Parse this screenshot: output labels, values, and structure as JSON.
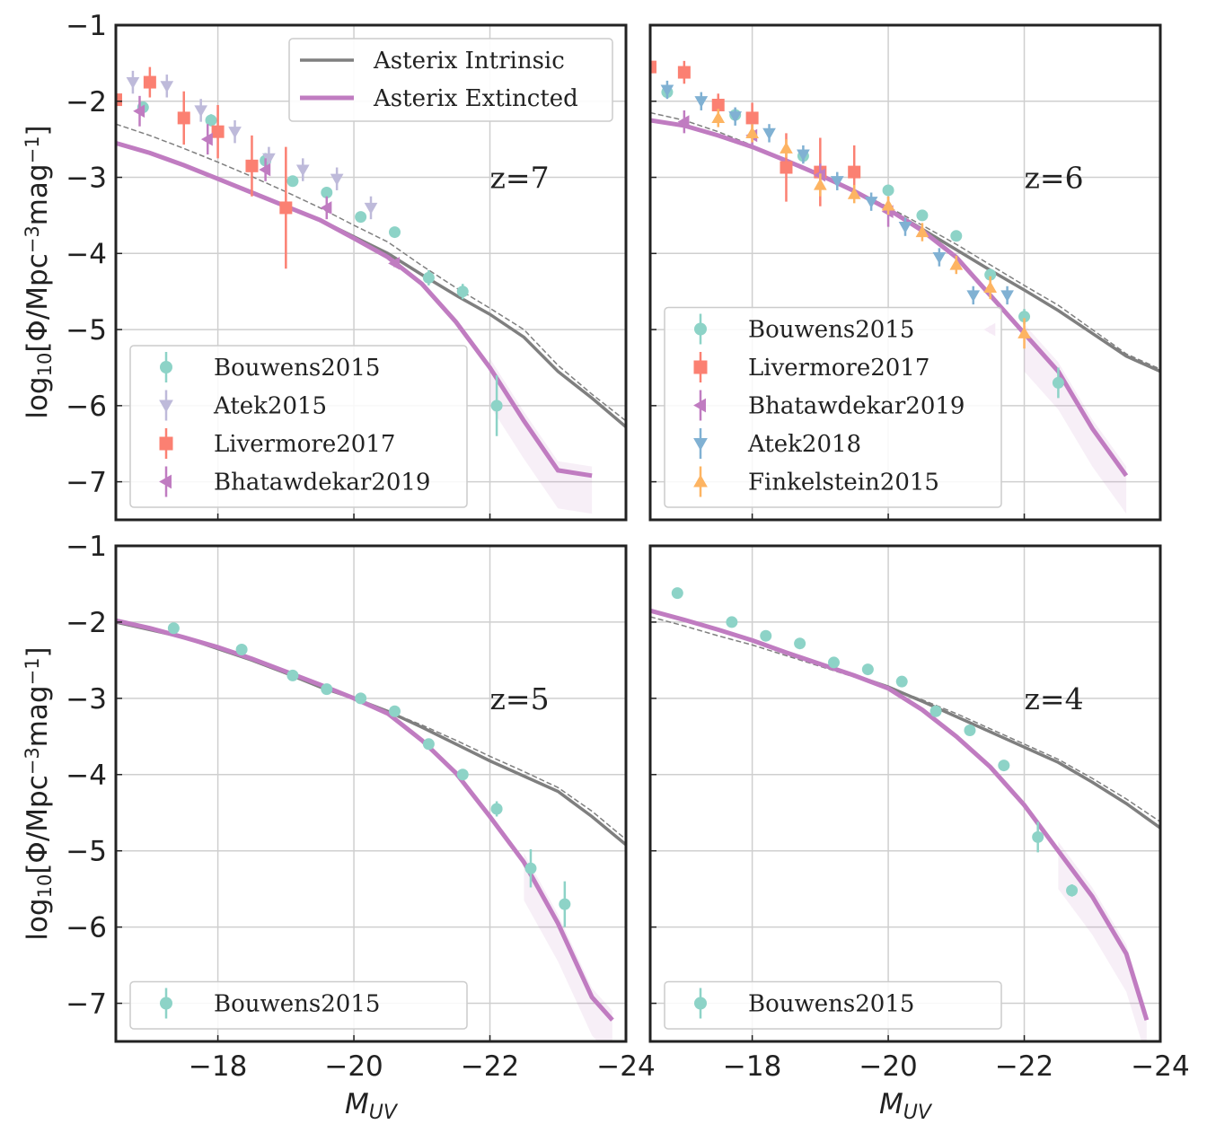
{
  "figure": {
    "ylabel_parts": [
      "log",
      "10",
      "[Φ/Mpc",
      "−3",
      "mag",
      "−1",
      "]"
    ],
    "xlabel_parts": [
      "M",
      "UV"
    ]
  },
  "colors": {
    "intrinsic": "#7f7f7f",
    "extincted": "#c07cc1",
    "Bouwens2015": "#8dd3c7",
    "Atek2015": "#bebada",
    "Livermore2017": "#fb8072",
    "Bhatawdekar2019": "#c07cc1",
    "Atek2018": "#80b1d3",
    "Finkelstein2015": "#fdb462",
    "grid": "#cfcfcf",
    "spine": "#222222"
  },
  "chart_data": [
    {
      "type": "line",
      "panel": "z7",
      "annotation": "z=7",
      "xlim": [
        -16.5,
        -24
      ],
      "ylim": [
        -7.5,
        -1
      ],
      "xticks": [
        -18,
        -20,
        -22,
        -24
      ],
      "yticks": [
        -1,
        -2,
        -3,
        -4,
        -5,
        -6,
        -7
      ],
      "xtick_labels": [
        "−18",
        "−20",
        "−22",
        "−24"
      ],
      "ytick_labels": [
        "−1",
        "−2",
        "−3",
        "−4",
        "−5",
        "−6",
        "−7"
      ],
      "grid": true,
      "line_legend": [
        "Asterix Intrinsic",
        "Asterix Extincted"
      ],
      "lines": {
        "intrinsic": {
          "x": [
            -16.5,
            -17.0,
            -17.5,
            -18.0,
            -18.5,
            -19.0,
            -19.5,
            -20.0,
            -20.5,
            -21.0,
            -21.5,
            -22.0,
            -22.5,
            -23.0,
            -23.5,
            -24.0
          ],
          "y": [
            -2.55,
            -2.68,
            -2.84,
            -3.02,
            -3.2,
            -3.38,
            -3.56,
            -3.78,
            -4.0,
            -4.28,
            -4.55,
            -4.8,
            -5.1,
            -5.55,
            -5.9,
            -6.28
          ]
        },
        "intrinsic_dashed": {
          "x": [
            -16.5,
            -17.0,
            -17.5,
            -18.0,
            -18.5,
            -19.0,
            -19.5,
            -20.0,
            -20.5,
            -21.0,
            -21.5,
            -22.0,
            -22.5,
            -23.0,
            -23.5,
            -24.0
          ],
          "y": [
            -2.3,
            -2.45,
            -2.62,
            -2.8,
            -2.99,
            -3.19,
            -3.4,
            -3.63,
            -3.85,
            -4.16,
            -4.45,
            -4.72,
            -5.0,
            -5.47,
            -5.85,
            -6.2
          ]
        },
        "extincted": {
          "x": [
            -16.5,
            -17.0,
            -17.5,
            -18.0,
            -18.5,
            -19.0,
            -19.5,
            -20.0,
            -20.5,
            -21.0,
            -21.5,
            -22.0,
            -22.5,
            -23.0,
            -23.5
          ],
          "y": [
            -2.55,
            -2.68,
            -2.84,
            -3.02,
            -3.2,
            -3.38,
            -3.56,
            -3.8,
            -4.05,
            -4.4,
            -4.9,
            -5.5,
            -6.2,
            -6.85,
            -6.92
          ]
        }
      },
      "series": [
        {
          "name": "Bouwens2015",
          "marker": "circle",
          "x": [
            -16.9,
            -17.9,
            -18.7,
            -19.1,
            -19.6,
            -20.1,
            -20.6,
            -21.1,
            -21.6,
            -22.1
          ],
          "y": [
            -2.08,
            -2.25,
            -2.78,
            -3.05,
            -3.2,
            -3.52,
            -3.72,
            -4.32,
            -4.5,
            -6.0
          ],
          "err": [
            0.07,
            0.08,
            0.1,
            0.07,
            0.07,
            0.07,
            0.07,
            0.1,
            0.1,
            0.4
          ]
        },
        {
          "name": "Atek2015",
          "marker": "triangle-down",
          "x": [
            -16.75,
            -17.25,
            -17.75,
            -18.25,
            -18.75,
            -19.25,
            -19.75,
            -20.25
          ],
          "y": [
            -1.75,
            -1.8,
            -2.12,
            -2.4,
            -2.75,
            -2.9,
            -3.02,
            -3.4
          ],
          "err": [
            0.15,
            0.15,
            0.15,
            0.15,
            0.15,
            0.15,
            0.15,
            0.15
          ]
        },
        {
          "name": "Livermore2017",
          "marker": "square",
          "x": [
            -16.5,
            -17.0,
            -17.5,
            -18.0,
            -18.5,
            -19.0
          ],
          "y": [
            -1.98,
            -1.75,
            -2.22,
            -2.4,
            -2.85,
            -3.4
          ],
          "err": [
            0.2,
            0.2,
            0.35,
            0.35,
            0.4,
            0.8
          ]
        },
        {
          "name": "Bhatawdekar2019",
          "marker": "triangle-left",
          "x": [
            -16.85,
            -17.85,
            -18.7,
            -19.6,
            -20.6
          ],
          "y": [
            -2.13,
            -2.5,
            -2.9,
            -3.4,
            -4.13
          ],
          "err": [
            0.2,
            0.2,
            0.15,
            0.15,
            0.05
          ]
        }
      ]
    },
    {
      "type": "line",
      "panel": "z6",
      "annotation": "z=6",
      "xlim": [
        -16.5,
        -24
      ],
      "ylim": [
        -7.5,
        -1
      ],
      "xticks": [
        -18,
        -20,
        -22,
        -24
      ],
      "xtick_labels": [
        "−18",
        "−20",
        "−22",
        "−24"
      ],
      "grid": true,
      "lines": {
        "intrinsic": {
          "x": [
            -16.5,
            -17.0,
            -17.5,
            -18.0,
            -18.5,
            -19.0,
            -19.5,
            -20.0,
            -20.5,
            -21.0,
            -21.5,
            -22.0,
            -22.5,
            -23.0,
            -23.5,
            -24.0
          ],
          "y": [
            -2.25,
            -2.32,
            -2.45,
            -2.6,
            -2.78,
            -2.97,
            -3.18,
            -3.42,
            -3.68,
            -3.95,
            -4.22,
            -4.48,
            -4.75,
            -5.05,
            -5.35,
            -5.55
          ]
        },
        "intrinsic_dashed": {
          "x": [
            -16.5,
            -17.0,
            -17.5,
            -18.0,
            -18.5,
            -19.0,
            -19.5,
            -20.0,
            -20.5,
            -21.0,
            -21.5,
            -22.0,
            -22.5,
            -23.0,
            -23.5,
            -24.0
          ],
          "y": [
            -2.15,
            -2.25,
            -2.4,
            -2.58,
            -2.78,
            -2.97,
            -3.17,
            -3.39,
            -3.63,
            -3.88,
            -4.15,
            -4.42,
            -4.68,
            -5.0,
            -5.32,
            -5.52
          ]
        },
        "extincted": {
          "x": [
            -16.5,
            -17.0,
            -17.5,
            -18.0,
            -18.5,
            -19.0,
            -19.5,
            -20.0,
            -20.5,
            -21.0,
            -21.5,
            -22.0,
            -22.5,
            -23.0,
            -23.5
          ],
          "y": [
            -2.25,
            -2.32,
            -2.45,
            -2.6,
            -2.78,
            -2.97,
            -3.18,
            -3.42,
            -3.7,
            -4.05,
            -4.55,
            -5.05,
            -5.55,
            -6.3,
            -6.92
          ]
        }
      },
      "series": [
        {
          "name": "Bouwens2015",
          "marker": "circle",
          "x": [
            -16.75,
            -17.75,
            -18.75,
            -20.0,
            -20.5,
            -21.0,
            -21.5,
            -22.0,
            -22.5
          ],
          "y": [
            -1.88,
            -2.18,
            -2.72,
            -3.17,
            -3.5,
            -3.77,
            -4.28,
            -4.83,
            -5.7
          ],
          "err": [
            0.08,
            0.07,
            0.07,
            0.07,
            0.07,
            0.07,
            0.08,
            0.1,
            0.2
          ]
        },
        {
          "name": "Livermore2017",
          "marker": "square",
          "x": [
            -16.5,
            -17.0,
            -17.5,
            -18.0,
            -18.5,
            -19.0,
            -19.5
          ],
          "y": [
            -1.55,
            -1.62,
            -2.05,
            -2.22,
            -2.87,
            -2.93,
            -2.93
          ],
          "err": [
            0.15,
            0.15,
            0.15,
            0.2,
            0.45,
            0.45,
            0.35
          ]
        },
        {
          "name": "Bhatawdekar2019",
          "marker": "triangle-left",
          "x": [
            -17.0,
            -18.0,
            -19.0,
            -20.0,
            -21.5
          ],
          "y": [
            -2.27,
            -2.45,
            -2.97,
            -3.45,
            -5.0
          ],
          "err": [
            0.15,
            0.15,
            0.15,
            0.2,
            0.05
          ]
        },
        {
          "name": "Atek2018",
          "marker": "triangle-down",
          "x": [
            -16.75,
            -17.25,
            -17.75,
            -18.25,
            -18.75,
            -19.25,
            -19.75,
            -20.25,
            -20.75,
            -21.25,
            -21.75
          ],
          "y": [
            -1.85,
            -2.0,
            -2.2,
            -2.42,
            -2.7,
            -3.05,
            -3.32,
            -3.65,
            -4.05,
            -4.55,
            -4.55
          ],
          "err": [
            0.12,
            0.12,
            0.12,
            0.12,
            0.12,
            0.12,
            0.12,
            0.12,
            0.12,
            0.12,
            0.12
          ]
        },
        {
          "name": "Finkelstein2015",
          "marker": "triangle-up",
          "x": [
            -17.5,
            -18.0,
            -18.5,
            -19.0,
            -19.5,
            -20.0,
            -20.5,
            -21.0,
            -21.5,
            -22.0
          ],
          "y": [
            -2.22,
            -2.42,
            -2.62,
            -3.1,
            -3.22,
            -3.37,
            -3.72,
            -4.15,
            -4.45,
            -5.05
          ],
          "err": [
            0.12,
            0.12,
            0.12,
            0.15,
            0.12,
            0.12,
            0.12,
            0.12,
            0.15,
            0.2
          ]
        }
      ]
    },
    {
      "type": "line",
      "panel": "z5",
      "annotation": "z=5",
      "xlim": [
        -16.5,
        -24
      ],
      "ylim": [
        -7.5,
        -1
      ],
      "xticks": [
        -18,
        -20,
        -22,
        -24
      ],
      "yticks": [
        -1,
        -2,
        -3,
        -4,
        -5,
        -6,
        -7
      ],
      "xtick_labels": [
        "−18",
        "−20",
        "−22",
        "−24"
      ],
      "ytick_labels": [
        "−1",
        "−2",
        "−3",
        "−4",
        "−5",
        "−6",
        "−7"
      ],
      "grid": true,
      "lines": {
        "intrinsic": {
          "x": [
            -16.5,
            -17.0,
            -17.5,
            -18.0,
            -18.5,
            -19.0,
            -19.5,
            -20.0,
            -20.5,
            -21.0,
            -21.5,
            -22.0,
            -22.5,
            -23.0,
            -23.5,
            -24.0
          ],
          "y": [
            -2.0,
            -2.1,
            -2.2,
            -2.35,
            -2.5,
            -2.67,
            -2.85,
            -3.0,
            -3.17,
            -3.38,
            -3.6,
            -3.82,
            -4.02,
            -4.22,
            -4.55,
            -4.92
          ]
        },
        "intrinsic_dashed": {
          "x": [
            -16.5,
            -17.0,
            -17.5,
            -18.0,
            -18.5,
            -19.0,
            -19.5,
            -20.0,
            -20.5,
            -21.0,
            -21.5,
            -22.0,
            -22.5,
            -23.0,
            -23.5,
            -24.0
          ],
          "y": [
            -2.0,
            -2.1,
            -2.2,
            -2.35,
            -2.5,
            -2.67,
            -2.85,
            -3.0,
            -3.17,
            -3.35,
            -3.55,
            -3.76,
            -3.96,
            -4.17,
            -4.48,
            -4.85
          ]
        },
        "extincted": {
          "x": [
            -16.5,
            -17.0,
            -17.5,
            -18.0,
            -18.5,
            -19.0,
            -19.5,
            -20.0,
            -20.5,
            -21.0,
            -21.5,
            -22.0,
            -22.5,
            -23.0,
            -23.5,
            -23.8
          ],
          "y": [
            -1.98,
            -2.08,
            -2.2,
            -2.33,
            -2.48,
            -2.65,
            -2.82,
            -3.0,
            -3.2,
            -3.55,
            -3.98,
            -4.55,
            -5.15,
            -5.95,
            -6.92,
            -7.22
          ]
        }
      },
      "series": [
        {
          "name": "Bouwens2015",
          "marker": "circle",
          "x": [
            -17.35,
            -18.35,
            -19.1,
            -19.6,
            -20.1,
            -20.6,
            -21.1,
            -21.6,
            -22.1,
            -22.6,
            -23.1
          ],
          "y": [
            -2.08,
            -2.36,
            -2.7,
            -2.88,
            -3.0,
            -3.17,
            -3.6,
            -4.0,
            -4.45,
            -5.23,
            -5.7
          ],
          "err": [
            0.04,
            0.04,
            0.04,
            0.04,
            0.04,
            0.04,
            0.05,
            0.06,
            0.1,
            0.25,
            0.3
          ]
        }
      ]
    },
    {
      "type": "line",
      "panel": "z4",
      "annotation": "z=4",
      "xlim": [
        -16.5,
        -24
      ],
      "ylim": [
        -7.5,
        -1
      ],
      "xticks": [
        -18,
        -20,
        -22,
        -24
      ],
      "xtick_labels": [
        "−18",
        "−20",
        "−22",
        "−24"
      ],
      "grid": true,
      "lines": {
        "intrinsic": {
          "x": [
            -16.5,
            -17.0,
            -17.5,
            -18.0,
            -18.5,
            -19.0,
            -19.5,
            -20.0,
            -20.5,
            -21.0,
            -21.5,
            -22.0,
            -22.5,
            -23.0,
            -23.5,
            -24.0
          ],
          "y": [
            -1.85,
            -1.97,
            -2.1,
            -2.24,
            -2.4,
            -2.55,
            -2.7,
            -2.85,
            -3.04,
            -3.24,
            -3.44,
            -3.64,
            -3.84,
            -4.1,
            -4.38,
            -4.7
          ]
        },
        "intrinsic_dashed": {
          "x": [
            -16.5,
            -17.0,
            -17.5,
            -18.0,
            -18.5,
            -19.0,
            -19.5,
            -20.0,
            -20.5,
            -21.0,
            -21.5,
            -22.0,
            -22.5,
            -23.0,
            -23.5,
            -24.0
          ],
          "y": [
            -1.93,
            -2.05,
            -2.18,
            -2.3,
            -2.44,
            -2.58,
            -2.72,
            -2.86,
            -3.02,
            -3.2,
            -3.4,
            -3.6,
            -3.8,
            -4.05,
            -4.32,
            -4.62
          ]
        },
        "extincted": {
          "x": [
            -16.5,
            -17.0,
            -17.5,
            -18.0,
            -18.5,
            -19.0,
            -19.5,
            -20.0,
            -20.5,
            -21.0,
            -21.5,
            -22.0,
            -22.5,
            -23.0,
            -23.5,
            -23.8
          ],
          "y": [
            -1.85,
            -1.97,
            -2.1,
            -2.24,
            -2.4,
            -2.55,
            -2.7,
            -2.87,
            -3.15,
            -3.5,
            -3.9,
            -4.4,
            -5.0,
            -5.6,
            -6.35,
            -7.22
          ]
        }
      },
      "series": [
        {
          "name": "Bouwens2015",
          "marker": "circle",
          "x": [
            -16.9,
            -17.7,
            -18.2,
            -18.7,
            -19.2,
            -19.7,
            -20.2,
            -20.7,
            -21.2,
            -21.7,
            -22.2,
            -22.7
          ],
          "y": [
            -1.62,
            -2.0,
            -2.18,
            -2.28,
            -2.53,
            -2.62,
            -2.78,
            -3.17,
            -3.42,
            -3.88,
            -4.82,
            -5.52
          ],
          "err": [
            0.03,
            0.03,
            0.03,
            0.03,
            0.03,
            0.03,
            0.03,
            0.04,
            0.05,
            0.06,
            0.2,
            0.08
          ]
        }
      ]
    }
  ]
}
